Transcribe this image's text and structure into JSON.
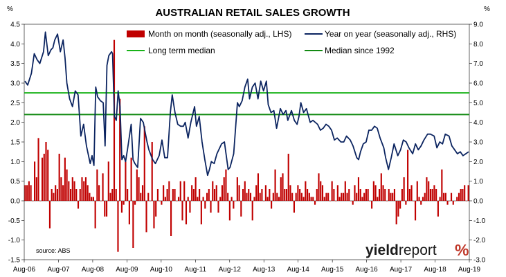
{
  "chart_data": {
    "type": "bar+line",
    "title": "AUSTRALIAN RETAIL SALES GROWTH",
    "left_axis_unit": "%",
    "right_axis_unit": "%",
    "ylim_left": [
      -1.5,
      4.5
    ],
    "ylim_right": [
      -3.0,
      9.0
    ],
    "left_ticks": [
      "-1.5",
      "-1.0",
      "-0.5",
      "0.0",
      "0.5",
      "1.0",
      "1.5",
      "2.0",
      "2.5",
      "3.0",
      "3.5",
      "4.0",
      "4.5"
    ],
    "right_ticks": [
      "-3.0",
      "-2.0",
      "-1.0",
      "0.0",
      "1.0",
      "2.0",
      "3.0",
      "4.0",
      "5.0",
      "6.0",
      "7.0",
      "8.0",
      "9.0"
    ],
    "x_tick_labels": [
      "Aug-06",
      "Aug-07",
      "Aug-08",
      "Aug-09",
      "Aug-10",
      "Aug-11",
      "Aug-12",
      "Aug-13",
      "Aug-14",
      "Aug-15",
      "Aug-16",
      "Aug-17",
      "Aug-18",
      "Aug-19"
    ],
    "x_range": [
      "Aug-06",
      "Aug-19"
    ],
    "series": [
      {
        "name": "Month on month (seasonally adj., LHS)",
        "kind": "bar",
        "axis": "left",
        "color": "#c00000",
        "values": [
          0.4,
          0.4,
          0.5,
          0.4,
          0.0,
          1.0,
          0.6,
          1.6,
          0.0,
          1.1,
          1.2,
          1.5,
          1.3,
          -0.7,
          0.3,
          0.2,
          0.4,
          0.3,
          1.2,
          0.6,
          0.4,
          1.1,
          0.8,
          0.5,
          0.3,
          0.6,
          0.5,
          0.3,
          -0.2,
          0.3,
          0.6,
          0.5,
          0.6,
          0.4,
          0.2,
          0.1,
          0.1,
          -0.7,
          0.8,
          0.4,
          0.0,
          0.7,
          -0.4,
          -0.4,
          1.0,
          0.2,
          0.3,
          4.1,
          0.3,
          -1.3,
          2.6,
          -0.3,
          -0.1,
          1.0,
          0.3,
          -0.6,
          1.1,
          -1.2,
          -0.1,
          0.8,
          0.6,
          0.2,
          0.4,
          1.9,
          -0.8,
          0.2,
          0.0,
          1.5,
          -0.7,
          -0.4,
          0.3,
          0.0,
          -0.1,
          0.4,
          0.1,
          0.3,
          0.5,
          -0.9,
          0.3,
          0.3,
          0.0,
          0.1,
          0.5,
          -0.5,
          0.5,
          -0.6,
          0.1,
          -0.3,
          0.4,
          0.3,
          0.6,
          0.1,
          0.3,
          -0.6,
          0.1,
          -0.2,
          0.2,
          0.3,
          -0.3,
          0.5,
          0.3,
          0.4,
          -0.3,
          0.1,
          0.4,
          0.6,
          0.8,
          0.2,
          -0.5,
          0.1,
          -0.2,
          0.0,
          0.6,
          0.4,
          -0.4,
          0.3,
          0.5,
          0.2,
          0.3,
          0.2,
          -0.5,
          0.1,
          0.4,
          0.7,
          0.2,
          0.3,
          0.0,
          0.4,
          0.1,
          0.3,
          -0.2,
          0.2,
          0.8,
          0.2,
          0.1,
          0.6,
          0.7,
          0.3,
          0.3,
          1.2,
          0.4,
          0.2,
          -0.3,
          0.2,
          0.4,
          0.3,
          0.2,
          0.1,
          0.5,
          0.3,
          0.2,
          0.1,
          0.1,
          -0.1,
          0.3,
          0.7,
          0.5,
          0.4,
          0.1,
          0.2,
          0.2,
          0.0,
          0.5,
          0.3,
          0.0,
          0.4,
          0.1,
          0.2,
          0.2,
          0.5,
          0.2,
          0.3,
          0.0,
          -0.1,
          0.4,
          0.2,
          0.6,
          0.3,
          0.1,
          0.2,
          0.3,
          0.3,
          0.0,
          -0.2,
          0.5,
          0.4,
          0.1,
          0.3,
          0.7,
          0.4,
          0.3,
          0.0,
          0.3,
          0.2,
          0.2,
          0.3,
          -0.6,
          -0.4,
          -0.2,
          0.3,
          0.6,
          -0.1,
          1.3,
          0.3,
          0.4,
          0.0,
          -0.5,
          0.5,
          0.1,
          -0.1,
          0.1,
          0.2,
          0.6,
          0.5,
          0.3,
          0.3,
          0.4,
          0.3,
          -0.4,
          0.1,
          0.8,
          0.2,
          0.2,
          -0.1,
          0.0,
          0.2,
          -0.1,
          0.0,
          0.1,
          0.2,
          0.3,
          0.3,
          0.4,
          0.0,
          0.4
        ]
      },
      {
        "name": "Year on year (seasonally adj., RHS)",
        "kind": "line",
        "axis": "right",
        "color": "#0b2460",
        "points": [
          [
            0.0,
            6.1
          ],
          [
            0.3,
            5.9
          ],
          [
            0.7,
            6.5
          ],
          [
            1.0,
            7.5
          ],
          [
            1.3,
            7.2
          ],
          [
            1.6,
            7.0
          ],
          [
            2.0,
            7.6
          ],
          [
            2.2,
            8.6
          ],
          [
            2.5,
            7.4
          ],
          [
            2.8,
            7.7
          ],
          [
            3.0,
            7.8
          ],
          [
            3.2,
            8.2
          ],
          [
            3.5,
            8.5
          ],
          [
            3.8,
            7.6
          ],
          [
            4.1,
            8.2
          ],
          [
            4.3,
            7.3
          ],
          [
            4.5,
            6.0
          ],
          [
            4.8,
            5.2
          ],
          [
            5.1,
            4.8
          ],
          [
            5.4,
            5.6
          ],
          [
            5.7,
            5.4
          ],
          [
            6.0,
            3.3
          ],
          [
            6.3,
            3.9
          ],
          [
            6.6,
            2.8
          ],
          [
            7.0,
            1.9
          ],
          [
            7.2,
            2.3
          ],
          [
            7.4,
            1.8
          ],
          [
            7.6,
            5.8
          ],
          [
            7.8,
            5.3
          ],
          [
            8.1,
            5.1
          ],
          [
            8.4,
            5.0
          ],
          [
            8.6,
            2.8
          ],
          [
            8.8,
            6.9
          ],
          [
            9.0,
            7.4
          ],
          [
            9.3,
            7.6
          ],
          [
            9.4,
            7.5
          ],
          [
            9.6,
            4.3
          ],
          [
            9.8,
            4.1
          ],
          [
            10.0,
            5.6
          ],
          [
            10.2,
            4.8
          ],
          [
            10.4,
            2.1
          ],
          [
            10.6,
            2.3
          ],
          [
            10.8,
            2.0
          ],
          [
            11.0,
            2.6
          ],
          [
            11.4,
            3.9
          ],
          [
            11.6,
            2.1
          ],
          [
            11.8,
            1.9
          ],
          [
            12.1,
            1.7
          ],
          [
            12.4,
            4.2
          ],
          [
            12.7,
            4.0
          ],
          [
            13.1,
            3.0
          ],
          [
            13.3,
            2.6
          ],
          [
            13.7,
            2.1
          ],
          [
            14.0,
            1.9
          ],
          [
            14.4,
            2.3
          ],
          [
            14.7,
            3.1
          ],
          [
            15.0,
            2.2
          ],
          [
            15.3,
            2.2
          ],
          [
            15.6,
            4.5
          ],
          [
            15.8,
            5.4
          ],
          [
            16.1,
            4.5
          ],
          [
            16.4,
            3.9
          ],
          [
            16.7,
            3.8
          ],
          [
            17.0,
            3.8
          ],
          [
            17.2,
            4.0
          ],
          [
            17.5,
            3.2
          ],
          [
            17.8,
            4.0
          ],
          [
            18.2,
            4.8
          ],
          [
            18.4,
            3.8
          ],
          [
            18.7,
            4.3
          ],
          [
            19.0,
            3.0
          ],
          [
            19.3,
            2.1
          ],
          [
            19.6,
            1.3
          ],
          [
            19.8,
            1.6
          ],
          [
            20.0,
            2.0
          ],
          [
            20.3,
            1.9
          ],
          [
            20.6,
            2.4
          ],
          [
            21.1,
            2.9
          ],
          [
            21.4,
            3.0
          ],
          [
            21.8,
            1.6
          ],
          [
            22.0,
            1.7
          ],
          [
            22.4,
            2.4
          ],
          [
            22.8,
            5.0
          ],
          [
            23.0,
            4.8
          ],
          [
            23.3,
            5.1
          ],
          [
            23.6,
            5.8
          ],
          [
            23.9,
            6.2
          ],
          [
            24.1,
            5.2
          ],
          [
            24.4,
            5.8
          ],
          [
            24.7,
            6.0
          ],
          [
            25.0,
            5.2
          ],
          [
            25.3,
            6.1
          ],
          [
            25.6,
            5.6
          ],
          [
            25.9,
            6.1
          ],
          [
            26.1,
            4.9
          ],
          [
            26.4,
            4.5
          ],
          [
            26.7,
            4.6
          ],
          [
            27.0,
            3.7
          ],
          [
            27.2,
            4.2
          ],
          [
            27.4,
            4.7
          ],
          [
            27.7,
            4.4
          ],
          [
            28.0,
            4.6
          ],
          [
            28.2,
            4.1
          ],
          [
            28.6,
            4.6
          ],
          [
            28.9,
            4.1
          ],
          [
            29.2,
            3.9
          ],
          [
            29.4,
            4.3
          ],
          [
            29.6,
            5.0
          ],
          [
            29.9,
            4.5
          ],
          [
            30.2,
            4.7
          ],
          [
            30.6,
            4.0
          ],
          [
            30.9,
            4.1
          ],
          [
            31.4,
            3.9
          ],
          [
            31.7,
            3.6
          ],
          [
            32.0,
            3.7
          ],
          [
            32.3,
            3.9
          ],
          [
            32.6,
            3.8
          ],
          [
            32.9,
            3.6
          ],
          [
            33.2,
            3.1
          ],
          [
            33.5,
            3.2
          ],
          [
            33.9,
            3.0
          ],
          [
            34.2,
            3.0
          ],
          [
            34.5,
            3.3
          ],
          [
            34.9,
            3.1
          ],
          [
            35.2,
            2.8
          ],
          [
            35.6,
            2.2
          ],
          [
            35.8,
            2.1
          ],
          [
            36.0,
            2.5
          ],
          [
            36.3,
            2.9
          ],
          [
            36.6,
            3.0
          ],
          [
            36.9,
            3.6
          ],
          [
            37.2,
            3.6
          ],
          [
            37.5,
            3.8
          ],
          [
            37.8,
            3.7
          ],
          [
            38.1,
            3.2
          ],
          [
            38.5,
            2.7
          ],
          [
            38.7,
            2.2
          ],
          [
            39.0,
            1.6
          ],
          [
            39.3,
            2.2
          ],
          [
            39.6,
            2.9
          ],
          [
            40.0,
            2.3
          ],
          [
            40.3,
            2.6
          ],
          [
            40.6,
            3.1
          ],
          [
            40.9,
            3.0
          ],
          [
            41.2,
            2.7
          ],
          [
            41.6,
            2.4
          ],
          [
            41.9,
            2.9
          ],
          [
            42.2,
            2.6
          ],
          [
            42.5,
            2.8
          ],
          [
            42.8,
            3.1
          ],
          [
            43.2,
            3.4
          ],
          [
            43.5,
            3.4
          ],
          [
            43.9,
            3.3
          ],
          [
            44.2,
            2.7
          ],
          [
            44.5,
            3.0
          ],
          [
            44.8,
            2.9
          ],
          [
            45.1,
            3.4
          ],
          [
            45.5,
            3.3
          ],
          [
            45.8,
            2.8
          ],
          [
            46.1,
            2.6
          ],
          [
            46.4,
            2.4
          ],
          [
            46.7,
            2.5
          ],
          [
            47.0,
            2.3
          ],
          [
            47.3,
            2.4
          ],
          [
            47.6,
            2.5
          ]
        ]
      }
    ],
    "reference_lines": [
      {
        "name": "Long term median",
        "axis": "right",
        "value": 5.5,
        "color": "#19b319"
      },
      {
        "name": "Median since 1992",
        "axis": "right",
        "value": 4.4,
        "color": "#138a13"
      }
    ],
    "legend_position": "top",
    "grid": false,
    "source_note": "source: ABS"
  },
  "branding": {
    "logo_part1": "yield",
    "logo_part2": "report",
    "logo_symbol": "%"
  }
}
